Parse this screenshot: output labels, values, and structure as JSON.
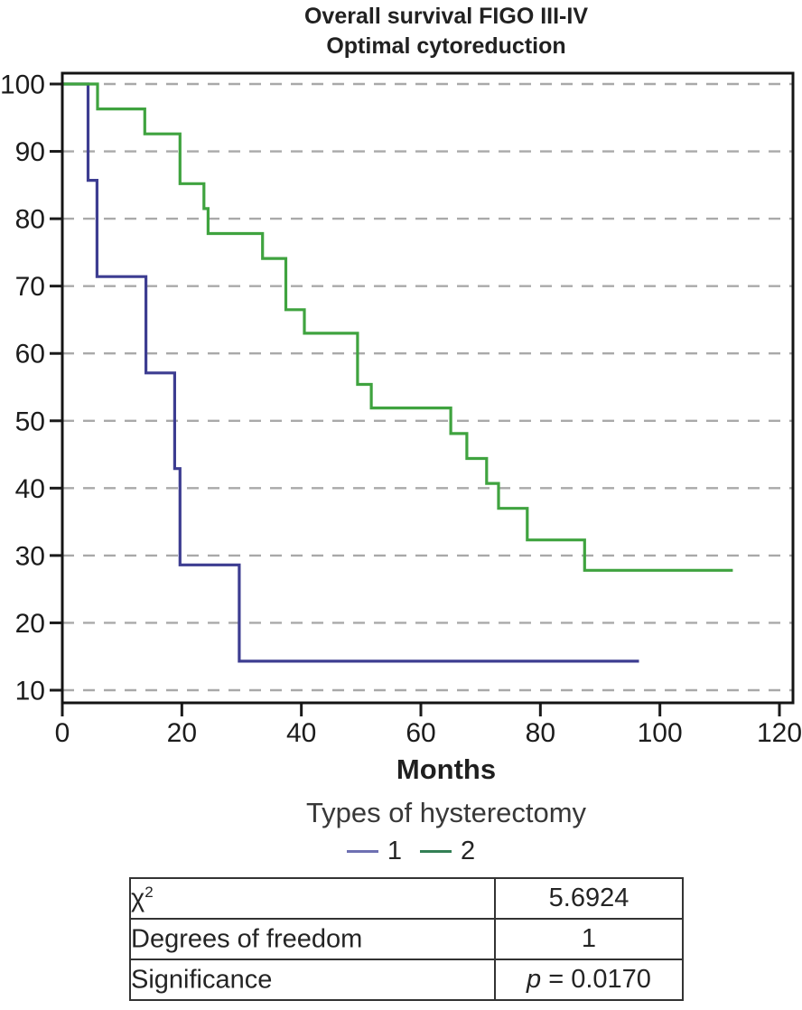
{
  "title": {
    "line1": "Overall survival FIGO III-IV",
    "line2": "Optimal cytoreduction"
  },
  "chart_data": {
    "type": "line",
    "variant": "kaplan_meier_step",
    "title": "Overall survival FIGO III-IV",
    "subtitle": "Optimal cytoreduction",
    "xlabel": "Months",
    "ylabel": "",
    "xlim": [
      0,
      122
    ],
    "ylim": [
      8,
      102
    ],
    "xticks": [
      0,
      20,
      40,
      60,
      80,
      100,
      120
    ],
    "yticks": [
      10,
      20,
      30,
      40,
      50,
      60,
      70,
      80,
      90,
      100
    ],
    "grid": "horizontal-dashed",
    "grid_color": "#a9a9a9",
    "axis_color": "#1a1a1a",
    "legend": {
      "title": "Types of hysterectomy",
      "position": "below",
      "entries": [
        {
          "label": "1",
          "color": "#6e70b2"
        },
        {
          "label": "2",
          "color": "#338055"
        }
      ]
    },
    "series": [
      {
        "name": "1",
        "color": "#3d3d91",
        "end_time": 96.5,
        "points": [
          [
            0,
            100
          ],
          [
            4.3,
            85.7
          ],
          [
            5.8,
            71.4
          ],
          [
            14.0,
            57.1
          ],
          [
            18.8,
            42.9
          ],
          [
            19.7,
            28.6
          ],
          [
            29.6,
            14.3
          ]
        ]
      },
      {
        "name": "2",
        "color": "#3fa33f",
        "end_time": 112.2,
        "points": [
          [
            0,
            100
          ],
          [
            5.9,
            96.3
          ],
          [
            13.8,
            92.6
          ],
          [
            19.7,
            85.2
          ],
          [
            23.7,
            81.5
          ],
          [
            24.4,
            77.8
          ],
          [
            33.5,
            74.1
          ],
          [
            37.4,
            66.5
          ],
          [
            40.5,
            63.0
          ],
          [
            49.4,
            55.4
          ],
          [
            51.7,
            51.9
          ],
          [
            65.0,
            48.1
          ],
          [
            67.7,
            44.4
          ],
          [
            71.0,
            40.7
          ],
          [
            73.0,
            37.0
          ],
          [
            77.8,
            32.3
          ],
          [
            87.4,
            27.8
          ]
        ]
      }
    ]
  },
  "stats_table": {
    "rows": [
      {
        "label": "χ",
        "label_sup": "2",
        "value_italic": "",
        "value": "5.6924"
      },
      {
        "label": "Degrees of freedom",
        "label_sup": "",
        "value_italic": "",
        "value": "1"
      },
      {
        "label": "Significance",
        "label_sup": "",
        "value_italic": "p",
        "value": " = 0.0170"
      }
    ]
  }
}
